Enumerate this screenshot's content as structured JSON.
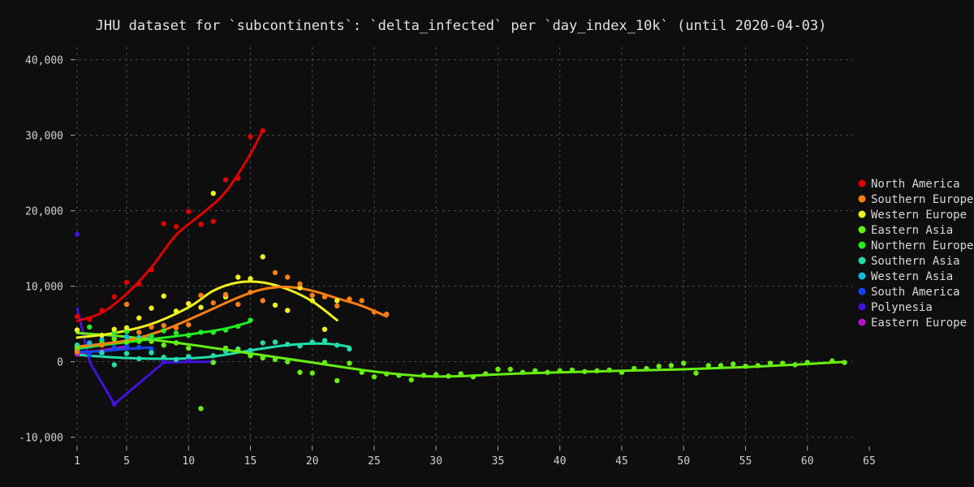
{
  "chart_data": {
    "type": "scatter",
    "title": "JHU dataset for `subcontinents`: `delta_infected` per `day_index_10k` (until 2020-04-03)",
    "xlabel": "",
    "ylabel": "",
    "xlim": [
      1,
      65
    ],
    "ylim": [
      -11000,
      42000
    ],
    "x_ticks": [
      1,
      5,
      10,
      15,
      20,
      25,
      30,
      35,
      40,
      45,
      50,
      55,
      60,
      65
    ],
    "y_ticks": [
      -10000,
      0,
      10000,
      20000,
      30000,
      40000
    ],
    "y_tick_labels": [
      "-10,000",
      "0",
      "10,000",
      "20,000",
      "30,000",
      "40,000"
    ],
    "grid": true,
    "legend_position": "right",
    "background": "#0e0e0e",
    "grid_color": "#4a4a4a",
    "series": [
      {
        "name": "North America",
        "color": "#e00000",
        "points": [
          [
            1,
            6000
          ],
          [
            2,
            5600
          ],
          [
            3,
            6800
          ],
          [
            4,
            8600
          ],
          [
            5,
            10500
          ],
          [
            6,
            10300
          ],
          [
            7,
            12200
          ],
          [
            8,
            18300
          ],
          [
            9,
            17900
          ],
          [
            10,
            19900
          ],
          [
            11,
            18200
          ],
          [
            12,
            18600
          ],
          [
            13,
            24100
          ],
          [
            14,
            24300
          ],
          [
            15,
            29800
          ],
          [
            16,
            30600
          ]
        ],
        "trend": [
          [
            1,
            5400
          ],
          [
            3,
            6500
          ],
          [
            5,
            9000
          ],
          [
            7,
            12500
          ],
          [
            9,
            16800
          ],
          [
            11,
            19500
          ],
          [
            13,
            22500
          ],
          [
            15,
            27500
          ],
          [
            16,
            30800
          ]
        ]
      },
      {
        "name": "Southern Europe",
        "color": "#ff7f0e",
        "points": [
          [
            1,
            1300
          ],
          [
            3,
            2200
          ],
          [
            5,
            7600
          ],
          [
            6,
            3900
          ],
          [
            7,
            4600
          ],
          [
            8,
            4800
          ],
          [
            9,
            4500
          ],
          [
            10,
            4900
          ],
          [
            11,
            8800
          ],
          [
            12,
            7800
          ],
          [
            13,
            8900
          ],
          [
            14,
            7600
          ],
          [
            15,
            9200
          ],
          [
            16,
            8100
          ],
          [
            17,
            11800
          ],
          [
            18,
            11200
          ],
          [
            19,
            10300
          ],
          [
            20,
            8800
          ],
          [
            21,
            8600
          ],
          [
            22,
            7400
          ],
          [
            23,
            8300
          ],
          [
            24,
            8100
          ],
          [
            25,
            6600
          ],
          [
            26,
            6300
          ]
        ],
        "trend": [
          [
            1,
            2000
          ],
          [
            5,
            2800
          ],
          [
            8,
            4200
          ],
          [
            11,
            6300
          ],
          [
            14,
            8500
          ],
          [
            16,
            9600
          ],
          [
            18,
            9900
          ],
          [
            20,
            9400
          ],
          [
            22,
            8400
          ],
          [
            24,
            7400
          ],
          [
            26,
            6000
          ]
        ]
      },
      {
        "name": "Western Europe",
        "color": "#f0f020",
        "points": [
          [
            1,
            4200
          ],
          [
            3,
            3500
          ],
          [
            4,
            4300
          ],
          [
            5,
            4500
          ],
          [
            6,
            5800
          ],
          [
            7,
            7100
          ],
          [
            8,
            8700
          ],
          [
            9,
            6700
          ],
          [
            10,
            7700
          ],
          [
            11,
            7200
          ],
          [
            12,
            22300
          ],
          [
            13,
            8600
          ],
          [
            14,
            11200
          ],
          [
            15,
            11000
          ],
          [
            16,
            13900
          ],
          [
            17,
            7500
          ],
          [
            18,
            6800
          ],
          [
            19,
            9800
          ],
          [
            20,
            8100
          ],
          [
            21,
            4300
          ],
          [
            22,
            8100
          ]
        ],
        "trend": [
          [
            1,
            3200
          ],
          [
            4,
            3800
          ],
          [
            7,
            5000
          ],
          [
            10,
            7200
          ],
          [
            12,
            9400
          ],
          [
            14,
            10500
          ],
          [
            16,
            10500
          ],
          [
            18,
            9600
          ],
          [
            20,
            8000
          ],
          [
            22,
            5500
          ]
        ]
      },
      {
        "name": "Eastern Asia",
        "color": "#66ee11",
        "points": [
          [
            1,
            1800
          ],
          [
            4,
            3000
          ],
          [
            5,
            2600
          ],
          [
            6,
            2900
          ],
          [
            7,
            2700
          ],
          [
            8,
            2200
          ],
          [
            9,
            2500
          ],
          [
            10,
            1800
          ],
          [
            11,
            -6200
          ],
          [
            12,
            -100
          ],
          [
            13,
            1800
          ],
          [
            14,
            1500
          ],
          [
            15,
            800
          ],
          [
            16,
            500
          ],
          [
            17,
            300
          ],
          [
            18,
            0
          ],
          [
            19,
            -1400
          ],
          [
            20,
            -1500
          ],
          [
            21,
            -100
          ],
          [
            22,
            -2500
          ],
          [
            23,
            -200
          ],
          [
            24,
            -1400
          ],
          [
            25,
            -2000
          ],
          [
            26,
            -1600
          ],
          [
            27,
            -1800
          ],
          [
            28,
            -2400
          ],
          [
            29,
            -1800
          ],
          [
            30,
            -1700
          ],
          [
            31,
            -1900
          ],
          [
            32,
            -1600
          ],
          [
            33,
            -2000
          ],
          [
            34,
            -1600
          ],
          [
            35,
            -1000
          ],
          [
            36,
            -1000
          ],
          [
            37,
            -1400
          ],
          [
            38,
            -1200
          ],
          [
            39,
            -1400
          ],
          [
            40,
            -1200
          ],
          [
            41,
            -1100
          ],
          [
            42,
            -1300
          ],
          [
            43,
            -1200
          ],
          [
            44,
            -1100
          ],
          [
            45,
            -1400
          ],
          [
            46,
            -900
          ],
          [
            47,
            -900
          ],
          [
            48,
            -600
          ],
          [
            49,
            -500
          ],
          [
            50,
            -200
          ],
          [
            51,
            -1500
          ],
          [
            52,
            -500
          ],
          [
            53,
            -500
          ],
          [
            54,
            -300
          ],
          [
            55,
            -600
          ],
          [
            56,
            -500
          ],
          [
            57,
            -200
          ],
          [
            58,
            -200
          ],
          [
            59,
            -400
          ],
          [
            60,
            -100
          ],
          [
            62,
            100
          ],
          [
            63,
            -100
          ]
        ],
        "trend": [
          [
            1,
            3800
          ],
          [
            5,
            3300
          ],
          [
            10,
            2300
          ],
          [
            15,
            1100
          ],
          [
            20,
            -100
          ],
          [
            25,
            -1300
          ],
          [
            29,
            -1900
          ],
          [
            32,
            -1900
          ],
          [
            36,
            -1600
          ],
          [
            40,
            -1400
          ],
          [
            45,
            -1200
          ],
          [
            50,
            -1000
          ],
          [
            55,
            -700
          ],
          [
            60,
            -300
          ],
          [
            63,
            0
          ]
        ]
      },
      {
        "name": "Northern Europe",
        "color": "#22ee22",
        "points": [
          [
            1,
            1500
          ],
          [
            2,
            4600
          ],
          [
            3,
            2500
          ],
          [
            4,
            3900
          ],
          [
            5,
            4000
          ],
          [
            6,
            2700
          ],
          [
            7,
            3400
          ],
          [
            8,
            4100
          ],
          [
            9,
            3800
          ],
          [
            10,
            3500
          ],
          [
            11,
            3900
          ],
          [
            12,
            3900
          ],
          [
            13,
            4200
          ],
          [
            14,
            4700
          ],
          [
            15,
            5500
          ]
        ],
        "trend": [
          [
            1,
            1800
          ],
          [
            4,
            2400
          ],
          [
            7,
            3000
          ],
          [
            10,
            3600
          ],
          [
            13,
            4400
          ],
          [
            15,
            5300
          ]
        ]
      },
      {
        "name": "Southern Asia",
        "color": "#22ddaa",
        "points": [
          [
            1,
            2200
          ],
          [
            3,
            1200
          ],
          [
            4,
            -400
          ],
          [
            5,
            1100
          ],
          [
            6,
            400
          ],
          [
            7,
            1200
          ],
          [
            8,
            600
          ],
          [
            9,
            300
          ],
          [
            10,
            700
          ],
          [
            12,
            800
          ],
          [
            13,
            1400
          ],
          [
            14,
            1700
          ],
          [
            15,
            1500
          ],
          [
            16,
            2500
          ],
          [
            17,
            2600
          ],
          [
            18,
            2300
          ],
          [
            19,
            2100
          ],
          [
            20,
            2600
          ],
          [
            21,
            2800
          ],
          [
            22,
            2200
          ],
          [
            23,
            1700
          ]
        ],
        "trend": [
          [
            1,
            900
          ],
          [
            5,
            500
          ],
          [
            9,
            400
          ],
          [
            12,
            700
          ],
          [
            15,
            1500
          ],
          [
            18,
            2200
          ],
          [
            21,
            2400
          ],
          [
            23,
            2000
          ]
        ]
      },
      {
        "name": "Western Asia",
        "color": "#11bbdd",
        "points": [
          [
            1,
            2000
          ],
          [
            2,
            2500
          ],
          [
            3,
            2900
          ],
          [
            4,
            3100
          ],
          [
            5,
            3300
          ],
          [
            6,
            3200
          ],
          [
            7,
            3000
          ]
        ],
        "trend": [
          [
            1,
            1700
          ],
          [
            3,
            2200
          ],
          [
            5,
            2700
          ],
          [
            7,
            3200
          ]
        ]
      },
      {
        "name": "South America",
        "color": "#1144ee",
        "points": [
          [
            1,
            1400
          ],
          [
            2,
            900
          ],
          [
            3,
            1100
          ],
          [
            4,
            1900
          ],
          [
            5,
            2100
          ],
          [
            6,
            1900
          ],
          [
            7,
            1700
          ]
        ],
        "trend": [
          [
            1,
            1300
          ],
          [
            3,
            1400
          ],
          [
            5,
            1700
          ],
          [
            7,
            1900
          ]
        ]
      },
      {
        "name": "Polynesia",
        "color": "#4411dd",
        "points": [
          [
            1,
            16900
          ],
          [
            4,
            -5600
          ],
          [
            8,
            0
          ],
          [
            10,
            200
          ],
          [
            12,
            0
          ]
        ],
        "trend": [
          [
            1,
            7200
          ],
          [
            2,
            0
          ],
          [
            4,
            -5600
          ],
          [
            8,
            -100
          ],
          [
            10,
            0
          ],
          [
            12,
            0
          ]
        ]
      },
      {
        "name": "Eastern Europe",
        "color": "#bb11cc",
        "points": [
          [
            1,
            1000
          ],
          [
            3,
            1300
          ],
          [
            5,
            2000
          ]
        ],
        "trend": [
          [
            1,
            1100
          ],
          [
            3,
            1500
          ],
          [
            5,
            2000
          ]
        ]
      }
    ]
  }
}
